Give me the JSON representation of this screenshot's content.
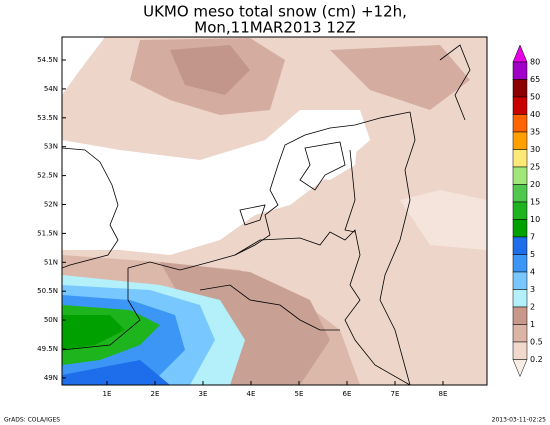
{
  "title": [
    "UKMO meso total snow (cm) +12h,",
    "Mon,11MAR2013 12Z"
  ],
  "lat_labels": [
    "54.5N",
    "54N",
    "53.5N",
    "53N",
    "52.5N",
    "52N",
    "51.5N",
    "51N",
    "50.5N",
    "50N",
    "49.5N",
    "49N"
  ],
  "lon_labels": [
    "1E",
    "2E",
    "3E",
    "4E",
    "5E",
    "6E",
    "7E",
    "8E"
  ],
  "colorbar": {
    "labels": [
      "80",
      "65",
      "50",
      "40",
      "35",
      "30",
      "25",
      "20",
      "15",
      "10",
      "7",
      "5",
      "4",
      "3",
      "2",
      "1",
      "0.5",
      "0.2"
    ],
    "colors": [
      "#e600e6",
      "#a000c8",
      "#8c0000",
      "#c80000",
      "#ff6400",
      "#ffa000",
      "#ffe878",
      "#a0e678",
      "#50c850",
      "#1eb41e",
      "#00a000",
      "#1e6eeb",
      "#3c96f5",
      "#78c8ff",
      "#b4f0fa",
      "#c8988a",
      "#dcb4a6",
      "#f0d8cc",
      "#f8ece6"
    ]
  },
  "footer": {
    "left": "GrADS: COLA/IGES",
    "right": "2013-03-11-02:25"
  }
}
